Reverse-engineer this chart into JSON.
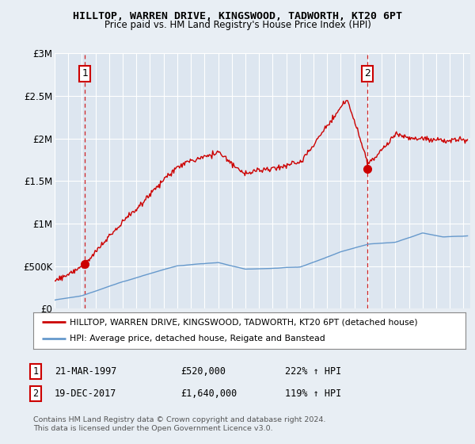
{
  "title": "HILLTOP, WARREN DRIVE, KINGSWOOD, TADWORTH, KT20 6PT",
  "subtitle": "Price paid vs. HM Land Registry's House Price Index (HPI)",
  "legend_line1": "HILLTOP, WARREN DRIVE, KINGSWOOD, TADWORTH, KT20 6PT (detached house)",
  "legend_line2": "HPI: Average price, detached house, Reigate and Banstead",
  "annotation1_label": "1",
  "annotation1_date": "21-MAR-1997",
  "annotation1_price": "£520,000",
  "annotation1_hpi": "222% ↑ HPI",
  "annotation2_label": "2",
  "annotation2_date": "19-DEC-2017",
  "annotation2_price": "£1,640,000",
  "annotation2_hpi": "119% ↑ HPI",
  "footer": "Contains HM Land Registry data © Crown copyright and database right 2024.\nThis data is licensed under the Open Government Licence v3.0.",
  "sale1_x": 1997.22,
  "sale1_y": 520000,
  "sale2_x": 2017.97,
  "sale2_y": 1640000,
  "red_color": "#cc0000",
  "blue_color": "#6699cc",
  "bg_color": "#e8eef4",
  "plot_bg": "#dde6f0",
  "grid_color": "#ffffff",
  "ylim": [
    0,
    3000000
  ],
  "xlim_start": 1995.0,
  "xlim_end": 2025.5
}
